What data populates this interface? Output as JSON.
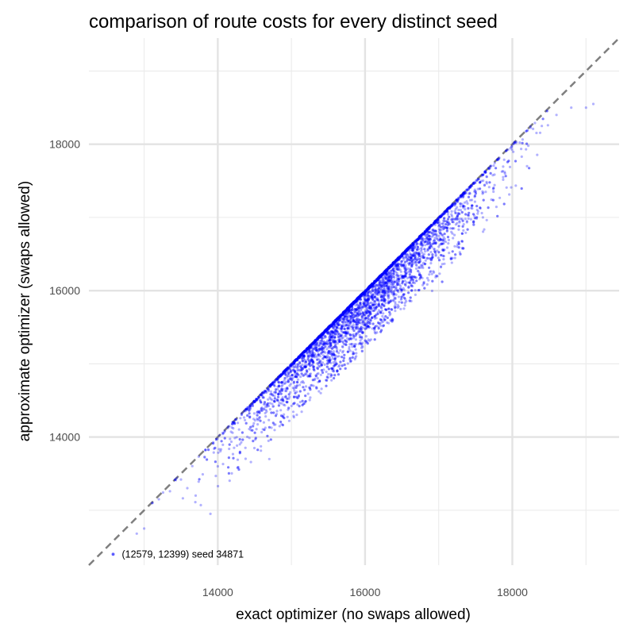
{
  "chart_data": {
    "type": "scatter",
    "title": "comparison of route costs for every distinct seed",
    "xlabel": "exact optimizer (no swaps allowed)",
    "ylabel": "approximate optimizer (swaps allowed)",
    "xlim": [
      12250,
      19450
    ],
    "ylim": [
      12250,
      19450
    ],
    "x_ticks": [
      14000,
      16000,
      18000
    ],
    "x_tick_labels": [
      "14000",
      "16000",
      "18000"
    ],
    "y_ticks": [
      14000,
      16000,
      18000
    ],
    "y_tick_labels": [
      "14000",
      "16000",
      "18000"
    ],
    "minor_ticks": [
      13000,
      15000,
      17000,
      19000
    ],
    "grid": true,
    "reference_line": {
      "slope": 1,
      "intercept": 0,
      "style": "dashed",
      "color": "#7f7f7f"
    },
    "point_color": "#0000ff",
    "point_opacity": 0.3,
    "highlight": {
      "x": 12579,
      "y": 12399,
      "label": "(12579, 12399) seed 34871"
    },
    "sample_points": [
      [
        12579,
        12399
      ],
      [
        12900,
        12680
      ],
      [
        13000,
        12750
      ],
      [
        13200,
        13150
      ],
      [
        13350,
        13260
      ],
      [
        13500,
        13420
      ],
      [
        13700,
        13200
      ],
      [
        13900,
        12950
      ],
      [
        14000,
        13600
      ],
      [
        14300,
        13900
      ],
      [
        14600,
        14400
      ],
      [
        14700,
        13700
      ],
      [
        15000,
        14800
      ],
      [
        15300,
        14700
      ],
      [
        15600,
        15400
      ],
      [
        15900,
        15500
      ],
      [
        16100,
        15800
      ],
      [
        16400,
        15900
      ],
      [
        16700,
        16500
      ],
      [
        17000,
        16600
      ],
      [
        17300,
        17100
      ],
      [
        17600,
        17000
      ],
      [
        17900,
        17600
      ],
      [
        18200,
        17700
      ],
      [
        18400,
        18250
      ],
      [
        18600,
        18400
      ],
      [
        18800,
        18500
      ],
      [
        19000,
        18500
      ],
      [
        19100,
        18550
      ]
    ]
  }
}
